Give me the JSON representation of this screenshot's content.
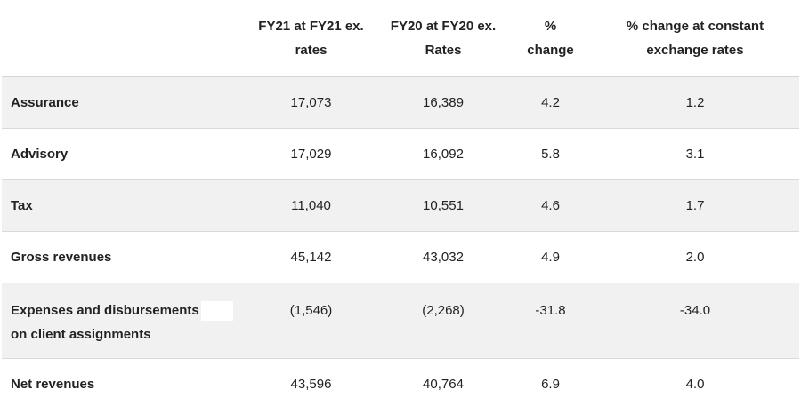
{
  "columns": [
    "",
    "FY21 at FY21 ex. rates",
    "FY20 at FY20 ex. Rates",
    "% change",
    "% change at constant exchange rates"
  ],
  "header_lines": {
    "c1": [
      "FY21 at FY21 ex.",
      "rates"
    ],
    "c2": [
      "FY20 at FY20 ex.",
      "Rates"
    ],
    "c3": [
      "%",
      "change"
    ],
    "c4": [
      "% change at constant",
      "exchange rates"
    ]
  },
  "rows": [
    {
      "label": "Assurance",
      "fy21": "17,073",
      "fy20": "16,389",
      "pct": "4.2",
      "pct_const": "1.2"
    },
    {
      "label": "Advisory",
      "fy21": "17,029",
      "fy20": "16,092",
      "pct": "5.8",
      "pct_const": "3.1"
    },
    {
      "label": "Tax",
      "fy21": "11,040",
      "fy20": "10,551",
      "pct": "4.6",
      "pct_const": "1.7"
    },
    {
      "label": "Gross revenues",
      "fy21": "45,142",
      "fy20": "43,032",
      "pct": "4.9",
      "pct_const": "2.0"
    },
    {
      "label_line1": "Expenses and disbursements",
      "label_line2_a": "on client",
      "label_line2_b": "assignments",
      "fy21": "(1,546)",
      "fy20": "(2,268)",
      "pct": "-31.8",
      "pct_const": "-34.0"
    },
    {
      "label": "Net revenues",
      "fy21": "43,596",
      "fy20": "40,764",
      "pct": "6.9",
      "pct_const": "4.0"
    }
  ],
  "colors": {
    "shaded_row": "#f1f1f1",
    "divider": "#d9d9d9",
    "text": "#222222"
  }
}
